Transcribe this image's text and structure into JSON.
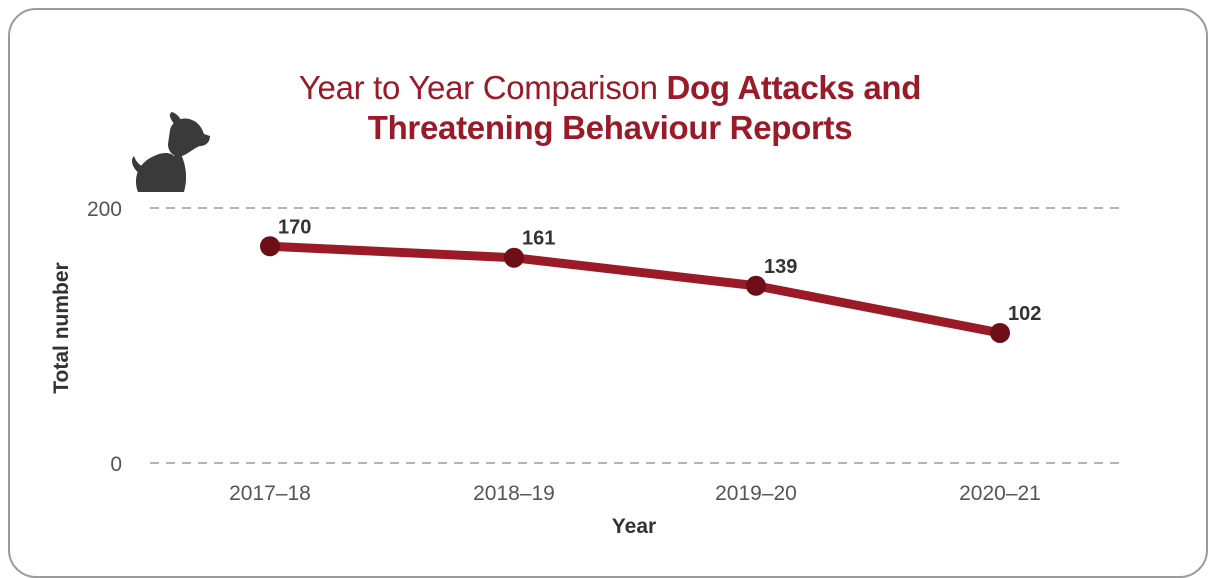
{
  "title": {
    "light": "Year to Year Comparison",
    "bold_line1": "Dog Attacks and",
    "bold_line2": "Threatening Behaviour Reports"
  },
  "icon": "dog-icon",
  "colors": {
    "accent": "#9a1b27",
    "point": "#6e0f18",
    "grid": "#9a9a9a",
    "axis_text": "#555555",
    "label_text": "#333333",
    "dog": "#3a3a3a"
  },
  "chart_data": {
    "type": "line",
    "title": "Year to Year Comparison Dog Attacks and Threatening Behaviour Reports",
    "xlabel": "Year",
    "ylabel": "Total number",
    "categories": [
      "2017–18",
      "2018–19",
      "2019–20",
      "2020–21"
    ],
    "series": [
      {
        "values": [
          170,
          161,
          139,
          102
        ]
      }
    ],
    "data_labels": [
      "170",
      "161",
      "139",
      "102"
    ],
    "y_ticks": [
      "200",
      "0"
    ],
    "ylim": [
      0,
      200
    ],
    "grid": "dashed horizontal at 0 and 200",
    "legend": "none"
  }
}
